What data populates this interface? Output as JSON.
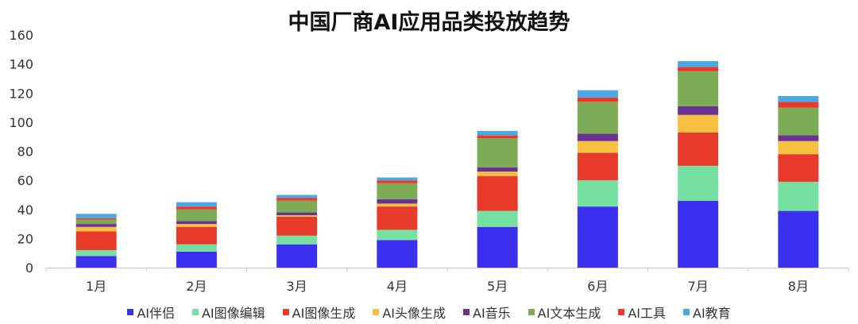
{
  "chart_data": {
    "type": "bar",
    "stacked": true,
    "title": "中国厂商AI应用品类投放趋势",
    "categories": [
      "1月",
      "2月",
      "3月",
      "4月",
      "5月",
      "6月",
      "7月",
      "8月"
    ],
    "ylim": [
      0,
      160
    ],
    "yticks": [
      0,
      20,
      40,
      60,
      80,
      100,
      120,
      140,
      160
    ],
    "grid": false,
    "legend_position": "bottom",
    "series": [
      {
        "name": "AI伴侣",
        "color": "#3b2ff0",
        "values": [
          8,
          11,
          16,
          19,
          28,
          42,
          46,
          39
        ]
      },
      {
        "name": "AI图像编辑",
        "color": "#76e0a0",
        "values": [
          4,
          5,
          6,
          7,
          11,
          18,
          24,
          20
        ]
      },
      {
        "name": "AI图像生成",
        "color": "#e83a2b",
        "values": [
          13,
          12,
          13,
          16,
          24,
          19,
          23,
          19
        ]
      },
      {
        "name": "AI头像生成",
        "color": "#f6c142",
        "values": [
          3,
          2,
          1,
          2,
          3,
          8,
          12,
          9
        ]
      },
      {
        "name": "AI音乐",
        "color": "#6a3291",
        "values": [
          2,
          2,
          2,
          3,
          3,
          5,
          6,
          4
        ]
      },
      {
        "name": "AI文本生成",
        "color": "#7eab55",
        "values": [
          3,
          8,
          8,
          11,
          20,
          22,
          24,
          19
        ]
      },
      {
        "name": "AI工具",
        "color": "#e83a2b",
        "values": [
          1,
          2,
          2,
          2,
          2,
          3,
          3,
          4
        ]
      },
      {
        "name": "AI教育",
        "color": "#4aa8e8",
        "values": [
          3,
          3,
          2,
          2,
          3,
          5,
          4,
          4
        ]
      }
    ]
  }
}
